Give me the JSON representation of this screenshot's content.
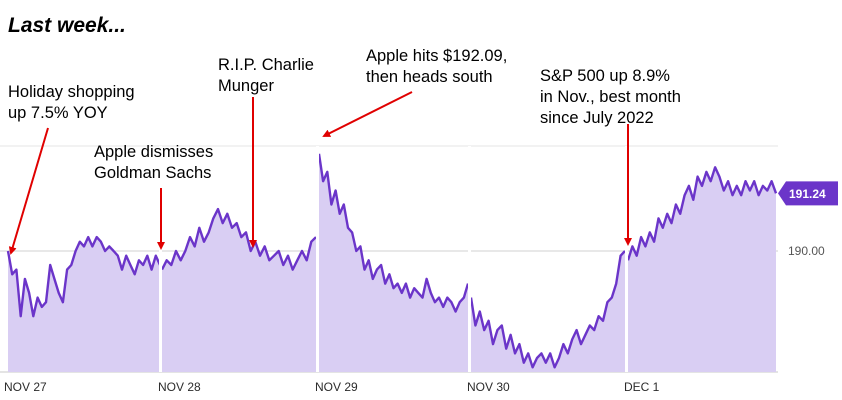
{
  "title": "Last week...",
  "annotations": [
    {
      "text": "Holiday shopping\nup 7.5% YOY"
    },
    {
      "text": "Apple dismisses\nGoldman Sachs"
    },
    {
      "text": "R.I.P. Charlie\nMunger"
    },
    {
      "text": "Apple hits $192.09,\nthen heads south"
    },
    {
      "text": "S&P 500 up 8.9%\nin Nov., best month\nsince July 2022"
    }
  ],
  "colors": {
    "line": "#6b35c9",
    "area": "#d9cef3",
    "badge": "#6b35c9",
    "arrow": "#e00000",
    "grid": "#d0d0d0",
    "session_break": "#ffffff"
  },
  "chart_data": {
    "type": "area",
    "title": "",
    "xlabel": "",
    "ylabel": "",
    "x_tick_labels": [
      "NOV 27",
      "NOV 28",
      "NOV 29",
      "NOV 30",
      "DEC 1"
    ],
    "y_tick_labels": [
      "190.00"
    ],
    "last_value_label": "191.24",
    "ylim": [
      187.4,
      192.3
    ],
    "sessions": [
      {
        "date": "NOV 27",
        "values": [
          190.0,
          189.5,
          189.6,
          188.6,
          189.4,
          189.1,
          188.6,
          189.0,
          188.8,
          188.9,
          189.7,
          189.4,
          189.1,
          188.9,
          189.6,
          189.7,
          190.0,
          190.2,
          190.1,
          190.3,
          190.1,
          190.3,
          190.2,
          190.0,
          190.1,
          190.0,
          189.9,
          189.6,
          189.9,
          189.7,
          189.5,
          189.8,
          189.7,
          189.9,
          189.6,
          189.9,
          189.7
        ]
      },
      {
        "date": "NOV 28",
        "values": [
          189.6,
          189.8,
          189.7,
          190.0,
          189.8,
          190.0,
          190.3,
          190.1,
          190.5,
          190.2,
          190.4,
          190.7,
          190.9,
          190.6,
          190.8,
          190.5,
          190.6,
          190.3,
          190.4,
          190.0,
          190.2,
          189.9,
          190.1,
          189.8,
          189.9,
          190.0,
          189.7,
          189.9,
          189.6,
          189.8,
          190.0,
          189.8,
          190.2,
          190.3
        ]
      },
      {
        "date": "NOV 29",
        "values": [
          192.09,
          191.5,
          191.7,
          191.0,
          191.3,
          190.8,
          191.0,
          190.5,
          190.4,
          190.0,
          190.1,
          189.6,
          189.8,
          189.4,
          189.6,
          189.7,
          189.3,
          189.5,
          189.2,
          189.3,
          189.1,
          189.3,
          189.0,
          189.2,
          189.1,
          189.0,
          189.4,
          189.1,
          188.9,
          189.0,
          188.8,
          189.0,
          188.9,
          188.7,
          188.9,
          189.0,
          189.3
        ]
      },
      {
        "date": "NOV 30",
        "values": [
          189.0,
          188.4,
          188.7,
          188.3,
          188.5,
          188.0,
          188.3,
          188.4,
          187.9,
          188.2,
          187.8,
          188.0,
          187.6,
          187.8,
          187.5,
          187.7,
          187.8,
          187.6,
          187.8,
          187.5,
          187.7,
          188.0,
          187.8,
          188.1,
          188.3,
          188.0,
          188.2,
          188.4,
          188.3,
          188.6,
          188.5,
          188.9,
          189.0,
          189.3,
          189.9,
          190.0
        ]
      },
      {
        "date": "DEC 1",
        "values": [
          189.8,
          190.1,
          189.9,
          190.3,
          190.1,
          190.4,
          190.2,
          190.7,
          190.5,
          190.8,
          190.6,
          191.0,
          190.8,
          191.2,
          191.4,
          191.1,
          191.6,
          191.4,
          191.7,
          191.5,
          191.8,
          191.6,
          191.3,
          191.5,
          191.2,
          191.4,
          191.2,
          191.5,
          191.3,
          191.5,
          191.2,
          191.4,
          191.3,
          191.5,
          191.24
        ]
      }
    ]
  }
}
